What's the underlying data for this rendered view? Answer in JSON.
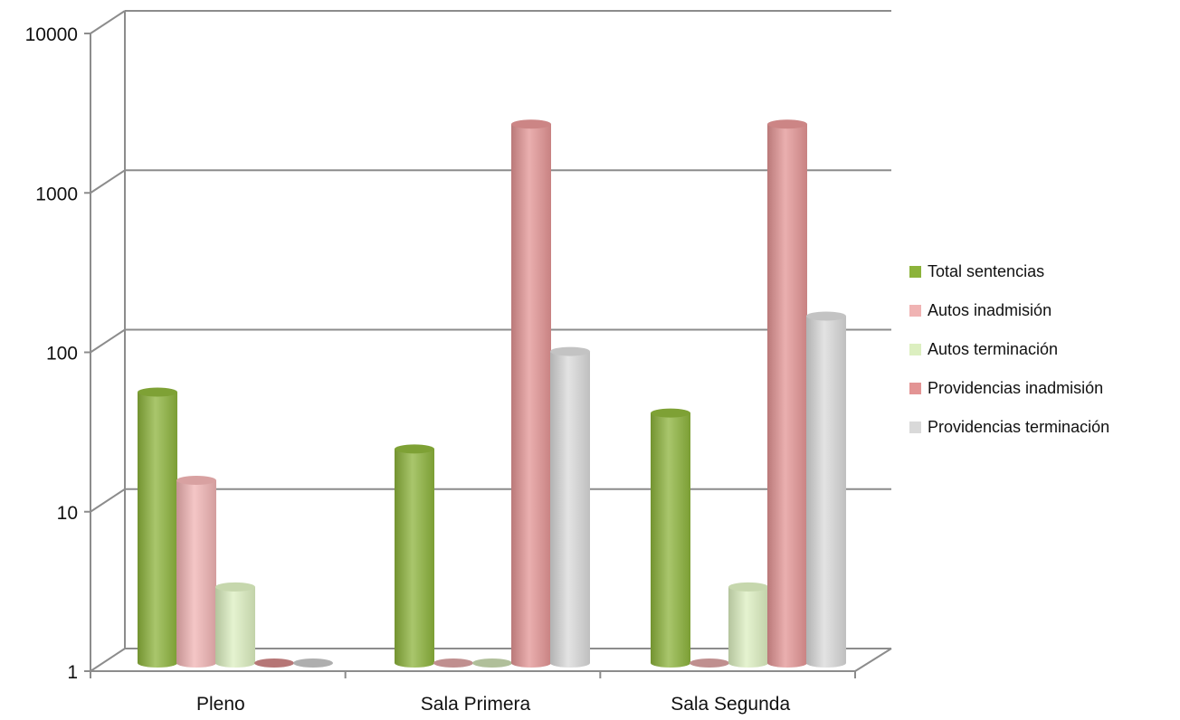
{
  "chart_data": {
    "type": "bar",
    "title": "",
    "xlabel": "",
    "ylabel": "",
    "scale": "log",
    "ylim": [
      1,
      10000
    ],
    "yticks": [
      "1",
      "10",
      "100",
      "1000",
      "10000"
    ],
    "categories": [
      "Pleno",
      "Sala Primera",
      "Sala Segunda"
    ],
    "grid": true,
    "legend": "right",
    "series": [
      {
        "name": "Total sentencias",
        "values": [
          50,
          22,
          37
        ],
        "color": "#8cb33b"
      },
      {
        "name": "Autos inadmisión",
        "values": [
          14,
          1,
          1
        ],
        "color": "#f0b3b3"
      },
      {
        "name": "Autos terminación",
        "values": [
          3,
          1,
          3
        ],
        "color": "#dcefc0"
      },
      {
        "name": "Providencias inadmisión",
        "values": [
          1,
          2400,
          2400
        ],
        "color": "#e39494"
      },
      {
        "name": "Providencias terminación",
        "values": [
          1,
          90,
          150
        ],
        "color": "#d9d9d9"
      }
    ]
  }
}
